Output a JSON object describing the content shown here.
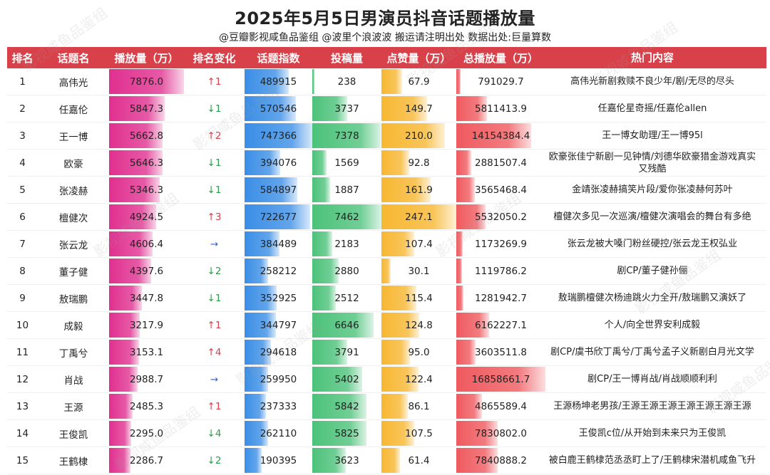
{
  "title": "2025年5月5日男演员抖音话题播放量",
  "subtitle": "@豆瓣影视咸鱼品鉴组 @波里个浪波波  搬运请注明出处  数据出处:巨量算数",
  "watermark": "影视咸鱼品鉴组",
  "colors": {
    "header": "#d9414a",
    "play": "#e0308f",
    "index": "#3a8ee6",
    "posts": "#4cc27a",
    "likes": "#f7b731",
    "total": "#ef5a5f"
  },
  "chart_data": {
    "type": "table",
    "title": "2025年5月5日男演员抖音话题播放量",
    "columns": [
      "排名",
      "话题名",
      "播放量（万）",
      "排名变化",
      "话题指数",
      "投稿量",
      "点赞量（万）",
      "总播放量（万）",
      "热门内容"
    ],
    "rows": [
      {
        "rank": "1",
        "name": "高伟光",
        "play": 7876.0,
        "change_dir": "up",
        "change": "1",
        "index": 489915,
        "posts": 238,
        "likes": 67.9,
        "total": 791029.7,
        "hot": "高伟光新剧救赎不良少年/剧/无尽的尽头"
      },
      {
        "rank": "2",
        "name": "任嘉伦",
        "play": 5847.3,
        "change_dir": "down",
        "change": "1",
        "index": 570546,
        "posts": 3737,
        "likes": 149.7,
        "total": 5811413.9,
        "hot": "任嘉伦星奇摇/任嘉伦allen"
      },
      {
        "rank": "3",
        "name": "王一博",
        "play": 5662.8,
        "change_dir": "up",
        "change": "2",
        "index": 747366,
        "posts": 7378,
        "likes": 210.0,
        "total": 14154384.4,
        "hot": "王一博女助理/王一博95l"
      },
      {
        "rank": "4",
        "name": "欧豪",
        "play": 5646.3,
        "change_dir": "down",
        "change": "1",
        "index": 394076,
        "posts": 1569,
        "likes": 92.8,
        "total": 2881507.4,
        "hot": "欧豪张佳宁新剧一见钟情/刘德华欧豪猎金游戏真实又残酷"
      },
      {
        "rank": "5",
        "name": "张凌赫",
        "play": 5346.3,
        "change_dir": "down",
        "change": "1",
        "index": 584897,
        "posts": 1887,
        "likes": 161.9,
        "total": 3565468.4,
        "hot": "金靖张凌赫搞笑片段/爱你张凌赫何苏叶"
      },
      {
        "rank": "6",
        "name": "檀健次",
        "play": 4924.5,
        "change_dir": "up",
        "change": "3",
        "index": 722677,
        "posts": 7462,
        "likes": 247.1,
        "total": 5532050.2,
        "hot": "檀健次多见一次巡演/檀健次演唱会的舞台有多绝"
      },
      {
        "rank": "7",
        "name": "张云龙",
        "play": 4606.4,
        "change_dir": "same",
        "change": "",
        "index": 384489,
        "posts": 2183,
        "likes": 107.4,
        "total": 1173269.9,
        "hot": "张云龙被大嗓门粉丝硬控/张云龙王权弘业"
      },
      {
        "rank": "8",
        "name": "董子健",
        "play": 4397.6,
        "change_dir": "down",
        "change": "2",
        "index": 258212,
        "posts": 2880,
        "likes": 30.1,
        "total": 1119786.2,
        "hot": "剧CP/董子健孙俪"
      },
      {
        "rank": "9",
        "name": "敖瑞鹏",
        "play": 3447.8,
        "change_dir": "down",
        "change": "1",
        "index": 352925,
        "posts": 2512,
        "likes": 115.4,
        "total": 1281942.7,
        "hot": "敖瑞鹏檀健次杨迪跳火力全开/敖瑞鹏又演妖了"
      },
      {
        "rank": "10",
        "name": "成毅",
        "play": 3217.9,
        "change_dir": "up",
        "change": "1",
        "index": 344797,
        "posts": 6646,
        "likes": 124.8,
        "total": 6162227.1,
        "hot": "个人/向全世界安利成毅"
      },
      {
        "rank": "11",
        "name": "丁禹兮",
        "play": 3153.1,
        "change_dir": "up",
        "change": "4",
        "index": 294618,
        "posts": 3791,
        "likes": 95.0,
        "total": 3603511.8,
        "hot": "剧CP/虞书欣丁禹兮/丁禹兮孟子义新剧白月光文学"
      },
      {
        "rank": "12",
        "name": "肖战",
        "play": 2988.7,
        "change_dir": "same",
        "change": "",
        "index": 259950,
        "posts": 5402,
        "likes": 122.4,
        "total": 16858661.7,
        "hot": "剧CP/王一博肖战/肖战顺顺利利"
      },
      {
        "rank": "13",
        "name": "王源",
        "play": 2485.3,
        "change_dir": "up",
        "change": "1",
        "index": 237333,
        "posts": 5842,
        "likes": 86.1,
        "total": 4865589.4,
        "hot": "王源杨坤老男孩/王源王源王源王源王源王源王源"
      },
      {
        "rank": "14",
        "name": "王俊凯",
        "play": 2295.0,
        "change_dir": "down",
        "change": "4",
        "index": 262110,
        "posts": 5825,
        "likes": 107.5,
        "total": 7830802.0,
        "hot": "王俊凯c位/从开始到未来只为王俊凯"
      },
      {
        "rank": "15",
        "name": "王鹤棣",
        "play": 2286.7,
        "change_dir": "down",
        "change": "2",
        "index": 190395,
        "posts": 3623,
        "likes": 61.4,
        "total": 7840888.2,
        "hot": "被白鹿王鹤棣范丞丞盯上了/王鹤棣宋潜机咸鱼飞升"
      }
    ],
    "arrows": {
      "up": "↑",
      "down": "↓",
      "same": "→"
    }
  }
}
